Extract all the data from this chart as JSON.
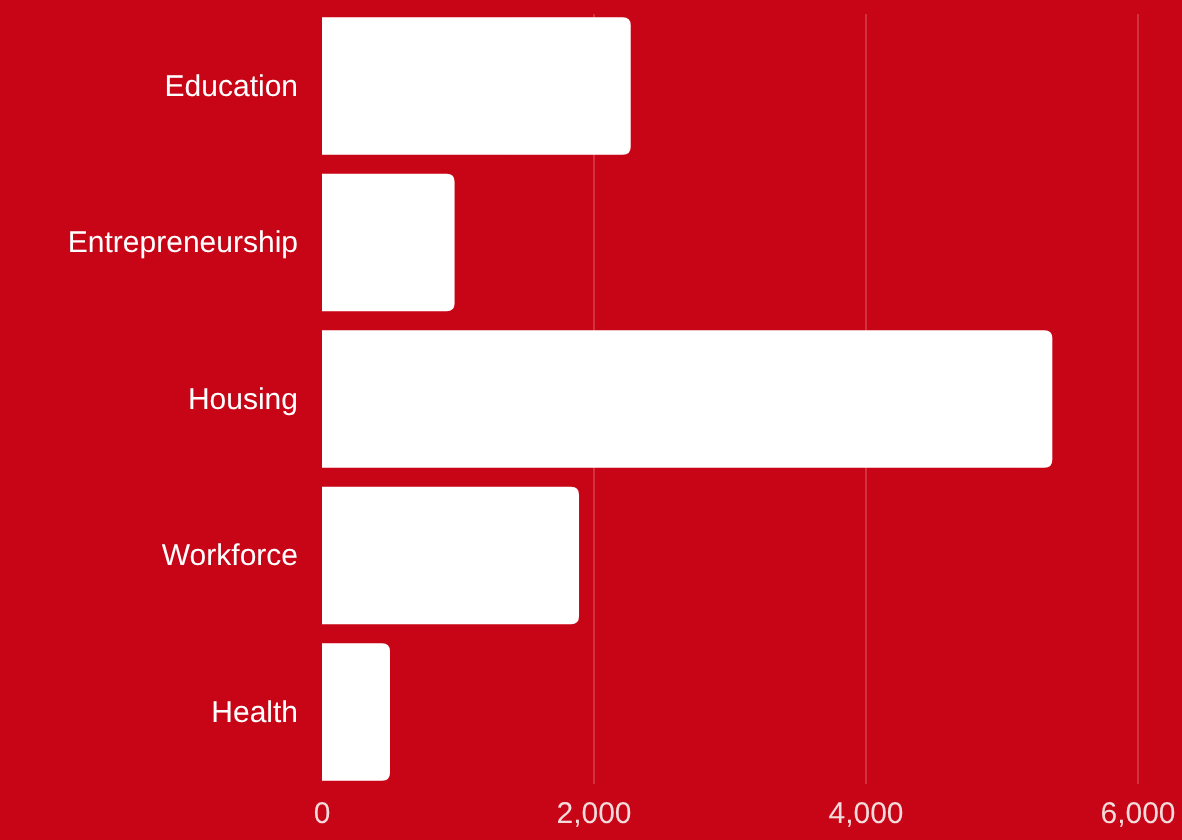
{
  "chart_data": {
    "type": "bar",
    "orientation": "horizontal",
    "categories": [
      "Education",
      "Entrepreneurship",
      "Housing",
      "Workforce ",
      "Health"
    ],
    "values": [
      2270,
      975,
      5370,
      1890,
      500
    ],
    "color": "#ffffff",
    "xlim": [
      0,
      6000
    ],
    "xticks": [
      0,
      {
        "value": 2000,
        "label": "2,000"
      },
      {
        "value": 4000,
        "label": "4,000"
      },
      {
        "value": 6000,
        "label": "6,000"
      }
    ],
    "grid": "x"
  }
}
